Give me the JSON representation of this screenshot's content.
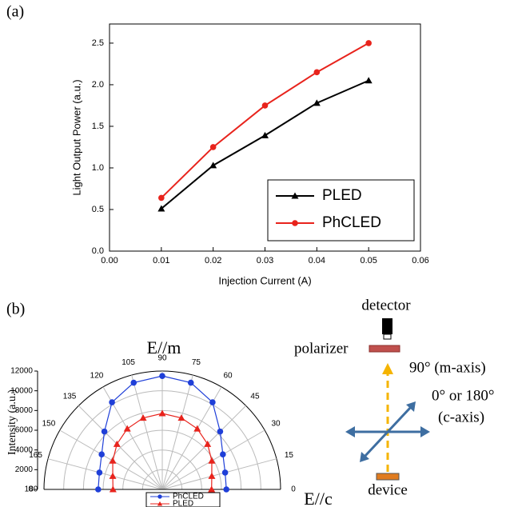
{
  "panel_labels": [
    "(a)",
    "(b)"
  ],
  "chart_data": [
    {
      "type": "line",
      "x_label": "Injection Current (A)",
      "y_label": "Light Output Power (a.u.)",
      "x": [
        0.01,
        0.02,
        0.03,
        0.04,
        0.05
      ],
      "series": [
        {
          "name": "PLED",
          "color": "#000000",
          "marker": "triangle",
          "values": [
            0.51,
            1.03,
            1.39,
            1.78,
            2.05
          ]
        },
        {
          "name": "PhCLED",
          "color": "#e8231c",
          "marker": "circle",
          "values": [
            0.64,
            1.25,
            1.75,
            2.15,
            2.5
          ]
        }
      ],
      "xlim": [
        0,
        0.06
      ],
      "xticks": [
        {
          "value": 0,
          "label": "0.00"
        },
        0.01,
        0.02,
        0.03,
        0.04,
        0.05,
        0.06
      ],
      "ylim": [
        0,
        2.73
      ],
      "yticks": [
        {
          "value": 0,
          "label": "0.0"
        },
        0.5,
        {
          "value": 1,
          "label": "1.0"
        },
        1.5,
        {
          "value": 2,
          "label": "2.0"
        },
        2.5
      ],
      "legend": "lower-right"
    },
    {
      "type": "polar",
      "title": "E//m",
      "y_label": "Intensity (a.u.)",
      "baseline_label": "E//c",
      "x": [
        0,
        15,
        30,
        45,
        60,
        75,
        90,
        105,
        120,
        135,
        150,
        165,
        180
      ],
      "series": [
        {
          "name": "PhCLED",
          "color": "#1f3fd8",
          "marker": "circle",
          "values": [
            6500,
            6600,
            7100,
            8300,
            10200,
            11200,
            11500,
            11200,
            10200,
            8300,
            7100,
            6600,
            6500
          ]
        },
        {
          "name": "PLED",
          "color": "#e8231c",
          "marker": "triangle",
          "values": [
            5000,
            5200,
            5800,
            6500,
            7100,
            7500,
            7700,
            7500,
            7100,
            6500,
            5800,
            5200,
            5000
          ]
        }
      ],
      "xticks": [
        0,
        15,
        30,
        45,
        60,
        75,
        90,
        105,
        120,
        135,
        150,
        165,
        180
      ],
      "ylim": [
        0,
        12000
      ],
      "yticks": [
        0,
        2000,
        4000,
        6000,
        8000,
        10000,
        12000
      ],
      "grid": true,
      "legend": "bottom"
    }
  ],
  "diagram": {
    "detector": "detector",
    "polarizer": "polarizer",
    "m_axis": "90° (m-axis)",
    "c_axis_angle": "0° or 180°",
    "c_axis": "(c-axis)",
    "device": "device"
  }
}
